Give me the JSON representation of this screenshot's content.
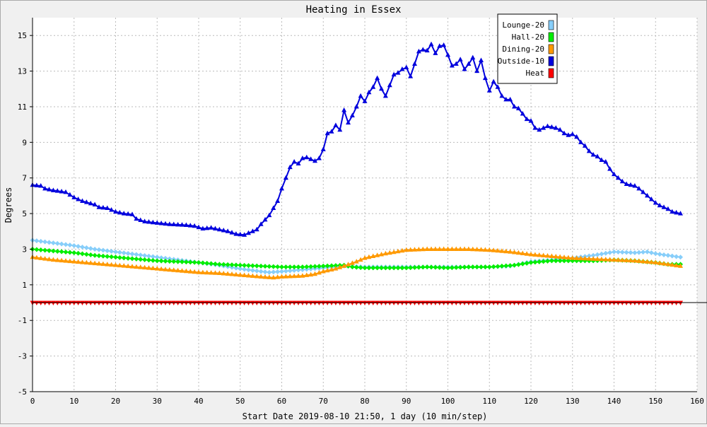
{
  "chart_data": {
    "type": "line",
    "title": "Heating in Essex",
    "xlabel": "Start Date 2019-08-10 21:50, 1 day (10 min/step)",
    "ylabel": "Degrees",
    "xlim": [
      0,
      160
    ],
    "ylim": [
      -5,
      16
    ],
    "xticks": [
      0,
      10,
      20,
      30,
      40,
      50,
      60,
      70,
      80,
      90,
      100,
      110,
      120,
      130,
      140,
      150,
      160
    ],
    "yticks": [
      -5,
      -3,
      -1,
      1,
      3,
      5,
      7,
      9,
      11,
      13,
      15
    ],
    "grid": true,
    "legend_position": "top-right",
    "series": [
      {
        "name": "Lounge-20",
        "color": "#87cefa",
        "marker": "diamond",
        "points": [
          [
            0,
            3.5
          ],
          [
            5,
            3.35
          ],
          [
            10,
            3.2
          ],
          [
            15,
            3.0
          ],
          [
            20,
            2.85
          ],
          [
            25,
            2.7
          ],
          [
            30,
            2.55
          ],
          [
            35,
            2.4
          ],
          [
            40,
            2.25
          ],
          [
            45,
            2.1
          ],
          [
            50,
            1.9
          ],
          [
            55,
            1.75
          ],
          [
            57,
            1.7
          ],
          [
            60,
            1.75
          ],
          [
            65,
            1.85
          ],
          [
            70,
            1.95
          ],
          [
            75,
            2.05
          ],
          [
            80,
            2.0
          ],
          [
            90,
            2.0
          ],
          [
            100,
            2.0
          ],
          [
            110,
            2.0
          ],
          [
            115,
            2.05
          ],
          [
            118,
            2.2
          ],
          [
            120,
            2.3
          ],
          [
            125,
            2.4
          ],
          [
            130,
            2.5
          ],
          [
            135,
            2.65
          ],
          [
            140,
            2.85
          ],
          [
            145,
            2.8
          ],
          [
            148,
            2.85
          ],
          [
            150,
            2.75
          ],
          [
            153,
            2.65
          ],
          [
            156,
            2.55
          ]
        ]
      },
      {
        "name": "Hall-20",
        "color": "#00ee00",
        "marker": "diamond",
        "points": [
          [
            0,
            3.0
          ],
          [
            5,
            2.9
          ],
          [
            10,
            2.8
          ],
          [
            15,
            2.65
          ],
          [
            20,
            2.55
          ],
          [
            25,
            2.45
          ],
          [
            30,
            2.35
          ],
          [
            35,
            2.3
          ],
          [
            40,
            2.25
          ],
          [
            45,
            2.15
          ],
          [
            50,
            2.1
          ],
          [
            55,
            2.05
          ],
          [
            60,
            2.0
          ],
          [
            65,
            2.0
          ],
          [
            70,
            2.05
          ],
          [
            75,
            2.1
          ],
          [
            77,
            2.0
          ],
          [
            80,
            1.95
          ],
          [
            85,
            1.95
          ],
          [
            90,
            1.95
          ],
          [
            95,
            2.0
          ],
          [
            100,
            1.95
          ],
          [
            105,
            2.0
          ],
          [
            110,
            2.0
          ],
          [
            113,
            2.05
          ],
          [
            116,
            2.1
          ],
          [
            120,
            2.25
          ],
          [
            125,
            2.35
          ],
          [
            130,
            2.35
          ],
          [
            135,
            2.35
          ],
          [
            140,
            2.4
          ],
          [
            145,
            2.35
          ],
          [
            150,
            2.25
          ],
          [
            153,
            2.15
          ],
          [
            156,
            2.15
          ]
        ]
      },
      {
        "name": "Dining-20",
        "color": "#ff9900",
        "marker": "triangle",
        "points": [
          [
            0,
            2.55
          ],
          [
            5,
            2.4
          ],
          [
            10,
            2.3
          ],
          [
            15,
            2.2
          ],
          [
            20,
            2.1
          ],
          [
            25,
            2.0
          ],
          [
            30,
            1.9
          ],
          [
            35,
            1.8
          ],
          [
            40,
            1.7
          ],
          [
            45,
            1.65
          ],
          [
            50,
            1.55
          ],
          [
            55,
            1.45
          ],
          [
            58,
            1.4
          ],
          [
            60,
            1.45
          ],
          [
            65,
            1.5
          ],
          [
            68,
            1.6
          ],
          [
            70,
            1.75
          ],
          [
            73,
            1.9
          ],
          [
            75,
            2.05
          ],
          [
            78,
            2.3
          ],
          [
            80,
            2.5
          ],
          [
            85,
            2.75
          ],
          [
            90,
            2.95
          ],
          [
            95,
            3.0
          ],
          [
            100,
            3.0
          ],
          [
            105,
            3.0
          ],
          [
            110,
            2.95
          ],
          [
            115,
            2.85
          ],
          [
            120,
            2.7
          ],
          [
            125,
            2.6
          ],
          [
            130,
            2.5
          ],
          [
            135,
            2.45
          ],
          [
            140,
            2.4
          ],
          [
            145,
            2.35
          ],
          [
            150,
            2.25
          ],
          [
            153,
            2.15
          ],
          [
            156,
            2.05
          ]
        ]
      },
      {
        "name": "Outside-10",
        "color": "#0000dd",
        "marker": "triangle",
        "points": [
          [
            0,
            6.6
          ],
          [
            2,
            6.55
          ],
          [
            3,
            6.4
          ],
          [
            5,
            6.3
          ],
          [
            8,
            6.2
          ],
          [
            10,
            5.9
          ],
          [
            12,
            5.7
          ],
          [
            15,
            5.5
          ],
          [
            16,
            5.35
          ],
          [
            18,
            5.3
          ],
          [
            20,
            5.1
          ],
          [
            22,
            5.0
          ],
          [
            24,
            4.95
          ],
          [
            25,
            4.7
          ],
          [
            27,
            4.55
          ],
          [
            29,
            4.5
          ],
          [
            33,
            4.4
          ],
          [
            37,
            4.35
          ],
          [
            39,
            4.3
          ],
          [
            41,
            4.15
          ],
          [
            43,
            4.2
          ],
          [
            45,
            4.1
          ],
          [
            47,
            4.0
          ],
          [
            49,
            3.85
          ],
          [
            51,
            3.8
          ],
          [
            52,
            3.9
          ],
          [
            54,
            4.1
          ],
          [
            55,
            4.4
          ],
          [
            57,
            4.9
          ],
          [
            59,
            5.7
          ],
          [
            60,
            6.4
          ],
          [
            61,
            7.0
          ],
          [
            62,
            7.6
          ],
          [
            63,
            7.9
          ],
          [
            64,
            7.8
          ],
          [
            65,
            8.1
          ],
          [
            66,
            8.15
          ],
          [
            67,
            8.05
          ],
          [
            68,
            7.95
          ],
          [
            69,
            8.1
          ],
          [
            70,
            8.6
          ],
          [
            71,
            9.5
          ],
          [
            72,
            9.6
          ],
          [
            73,
            9.95
          ],
          [
            74,
            9.7
          ],
          [
            75,
            10.8
          ],
          [
            76,
            10.1
          ],
          [
            77,
            10.5
          ],
          [
            78,
            11.0
          ],
          [
            79,
            11.6
          ],
          [
            80,
            11.3
          ],
          [
            81,
            11.8
          ],
          [
            82,
            12.1
          ],
          [
            83,
            12.6
          ],
          [
            84,
            12.0
          ],
          [
            85,
            11.6
          ],
          [
            86,
            12.2
          ],
          [
            87,
            12.8
          ],
          [
            88,
            12.9
          ],
          [
            89,
            13.1
          ],
          [
            90,
            13.2
          ],
          [
            91,
            12.7
          ],
          [
            92,
            13.4
          ],
          [
            93,
            14.1
          ],
          [
            94,
            14.2
          ],
          [
            95,
            14.15
          ],
          [
            96,
            14.5
          ],
          [
            97,
            14.0
          ],
          [
            98,
            14.4
          ],
          [
            99,
            14.45
          ],
          [
            100,
            13.9
          ],
          [
            101,
            13.3
          ],
          [
            102,
            13.4
          ],
          [
            103,
            13.65
          ],
          [
            104,
            13.1
          ],
          [
            105,
            13.4
          ],
          [
            106,
            13.75
          ],
          [
            107,
            13.0
          ],
          [
            108,
            13.6
          ],
          [
            109,
            12.6
          ],
          [
            110,
            11.9
          ],
          [
            111,
            12.4
          ],
          [
            112,
            12.1
          ],
          [
            113,
            11.6
          ],
          [
            114,
            11.4
          ],
          [
            115,
            11.4
          ],
          [
            116,
            11.0
          ],
          [
            117,
            10.9
          ],
          [
            118,
            10.6
          ],
          [
            119,
            10.3
          ],
          [
            120,
            10.2
          ],
          [
            121,
            9.8
          ],
          [
            122,
            9.7
          ],
          [
            123,
            9.8
          ],
          [
            124,
            9.9
          ],
          [
            125,
            9.85
          ],
          [
            126,
            9.8
          ],
          [
            127,
            9.7
          ],
          [
            128,
            9.5
          ],
          [
            129,
            9.4
          ],
          [
            130,
            9.45
          ],
          [
            131,
            9.3
          ],
          [
            132,
            9.0
          ],
          [
            133,
            8.8
          ],
          [
            134,
            8.5
          ],
          [
            135,
            8.3
          ],
          [
            136,
            8.2
          ],
          [
            137,
            8.0
          ],
          [
            138,
            7.9
          ],
          [
            139,
            7.5
          ],
          [
            140,
            7.2
          ],
          [
            141,
            7.0
          ],
          [
            142,
            6.8
          ],
          [
            143,
            6.65
          ],
          [
            144,
            6.6
          ],
          [
            145,
            6.55
          ],
          [
            146,
            6.4
          ],
          [
            147,
            6.2
          ],
          [
            148,
            6.0
          ],
          [
            149,
            5.8
          ],
          [
            150,
            5.6
          ],
          [
            151,
            5.45
          ],
          [
            152,
            5.35
          ],
          [
            153,
            5.25
          ],
          [
            154,
            5.1
          ],
          [
            155,
            5.05
          ],
          [
            156,
            5.0
          ]
        ]
      },
      {
        "name": "Heat",
        "color": "#ff0000",
        "marker": "triangle-down",
        "points": [
          [
            0,
            0
          ],
          [
            156,
            0
          ]
        ]
      }
    ]
  }
}
